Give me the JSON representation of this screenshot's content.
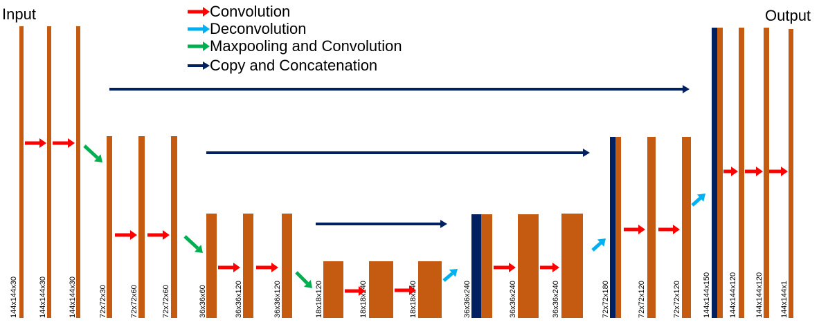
{
  "labels": {
    "input": "Input",
    "output": "Output"
  },
  "colors": {
    "block": "#C55A11",
    "concat_block": "#002060",
    "convolution": "#FF0000",
    "deconvolution": "#00B0F0",
    "maxpooling": "#00B050",
    "copy": "#002060"
  },
  "legend": [
    {
      "key": "convolution",
      "label": "Convolution"
    },
    {
      "key": "deconvolution",
      "label": "Deconvolution"
    },
    {
      "key": "maxpooling",
      "label": "Maxpooling and Convolution"
    },
    {
      "key": "copy",
      "label": "Copy and Concatenation"
    }
  ],
  "feature_maps": [
    {
      "id": "fm1",
      "label": "144x144x30"
    },
    {
      "id": "fm2",
      "label": "144x144x30"
    },
    {
      "id": "fm3",
      "label": "144x144x30"
    },
    {
      "id": "fm4",
      "label": "72x72x30"
    },
    {
      "id": "fm5",
      "label": "72x72x60"
    },
    {
      "id": "fm6",
      "label": "72x72x60"
    },
    {
      "id": "fm7",
      "label": "36x36x60"
    },
    {
      "id": "fm8",
      "label": "36x36x120"
    },
    {
      "id": "fm9",
      "label": "36x36x120"
    },
    {
      "id": "fm10",
      "label": "18x18x120"
    },
    {
      "id": "fm11",
      "label": "18x18x240"
    },
    {
      "id": "fm12",
      "label": "18x18x240"
    },
    {
      "id": "fm13",
      "label": "36x36x240",
      "concat": true
    },
    {
      "id": "fm14",
      "label": "36x36x240"
    },
    {
      "id": "fm15",
      "label": "36x36x240"
    },
    {
      "id": "fm16",
      "label": "72x72x180",
      "concat": true
    },
    {
      "id": "fm17",
      "label": "72x72x120"
    },
    {
      "id": "fm18",
      "label": "72x72x120"
    },
    {
      "id": "fm19",
      "label": "144x144x150",
      "concat": true
    },
    {
      "id": "fm20",
      "label": "144x144x120"
    },
    {
      "id": "fm21",
      "label": "144x144x120"
    },
    {
      "id": "fm22",
      "label": "144x144x1"
    }
  ]
}
